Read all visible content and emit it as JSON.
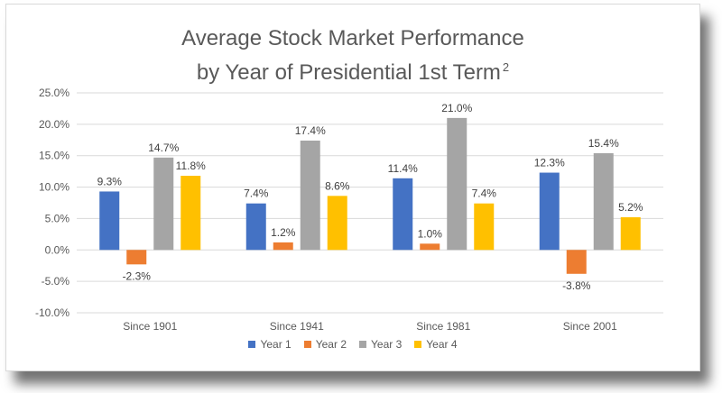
{
  "chart_data": {
    "type": "bar",
    "title_line1": "Average Stock Market Performance",
    "title_line2": "by Year of Presidential 1st Term",
    "title_superscript": "2",
    "categories": [
      "Since 1901",
      "Since 1941",
      "Since 1981",
      "Since 2001"
    ],
    "series": [
      {
        "name": "Year 1",
        "color": "#4472C4",
        "values": [
          9.3,
          7.4,
          11.4,
          12.3
        ]
      },
      {
        "name": "Year 2",
        "color": "#ED7D31",
        "values": [
          -2.3,
          1.2,
          1.0,
          -3.8
        ]
      },
      {
        "name": "Year 3",
        "color": "#A5A5A5",
        "values": [
          14.7,
          17.4,
          21.0,
          15.4
        ]
      },
      {
        "name": "Year 4",
        "color": "#FFC000",
        "values": [
          11.8,
          8.6,
          7.4,
          5.2
        ]
      }
    ],
    "ylim": [
      -10,
      25
    ],
    "yticks": [
      -10,
      -5,
      0,
      5,
      10,
      15,
      20,
      25
    ],
    "ytick_labels": [
      "-10.0%",
      "-5.0%",
      "0.0%",
      "5.0%",
      "10.0%",
      "15.0%",
      "20.0%",
      "25.0%"
    ],
    "value_format": "percent_1dp",
    "grid": true,
    "legend_position": "bottom"
  }
}
